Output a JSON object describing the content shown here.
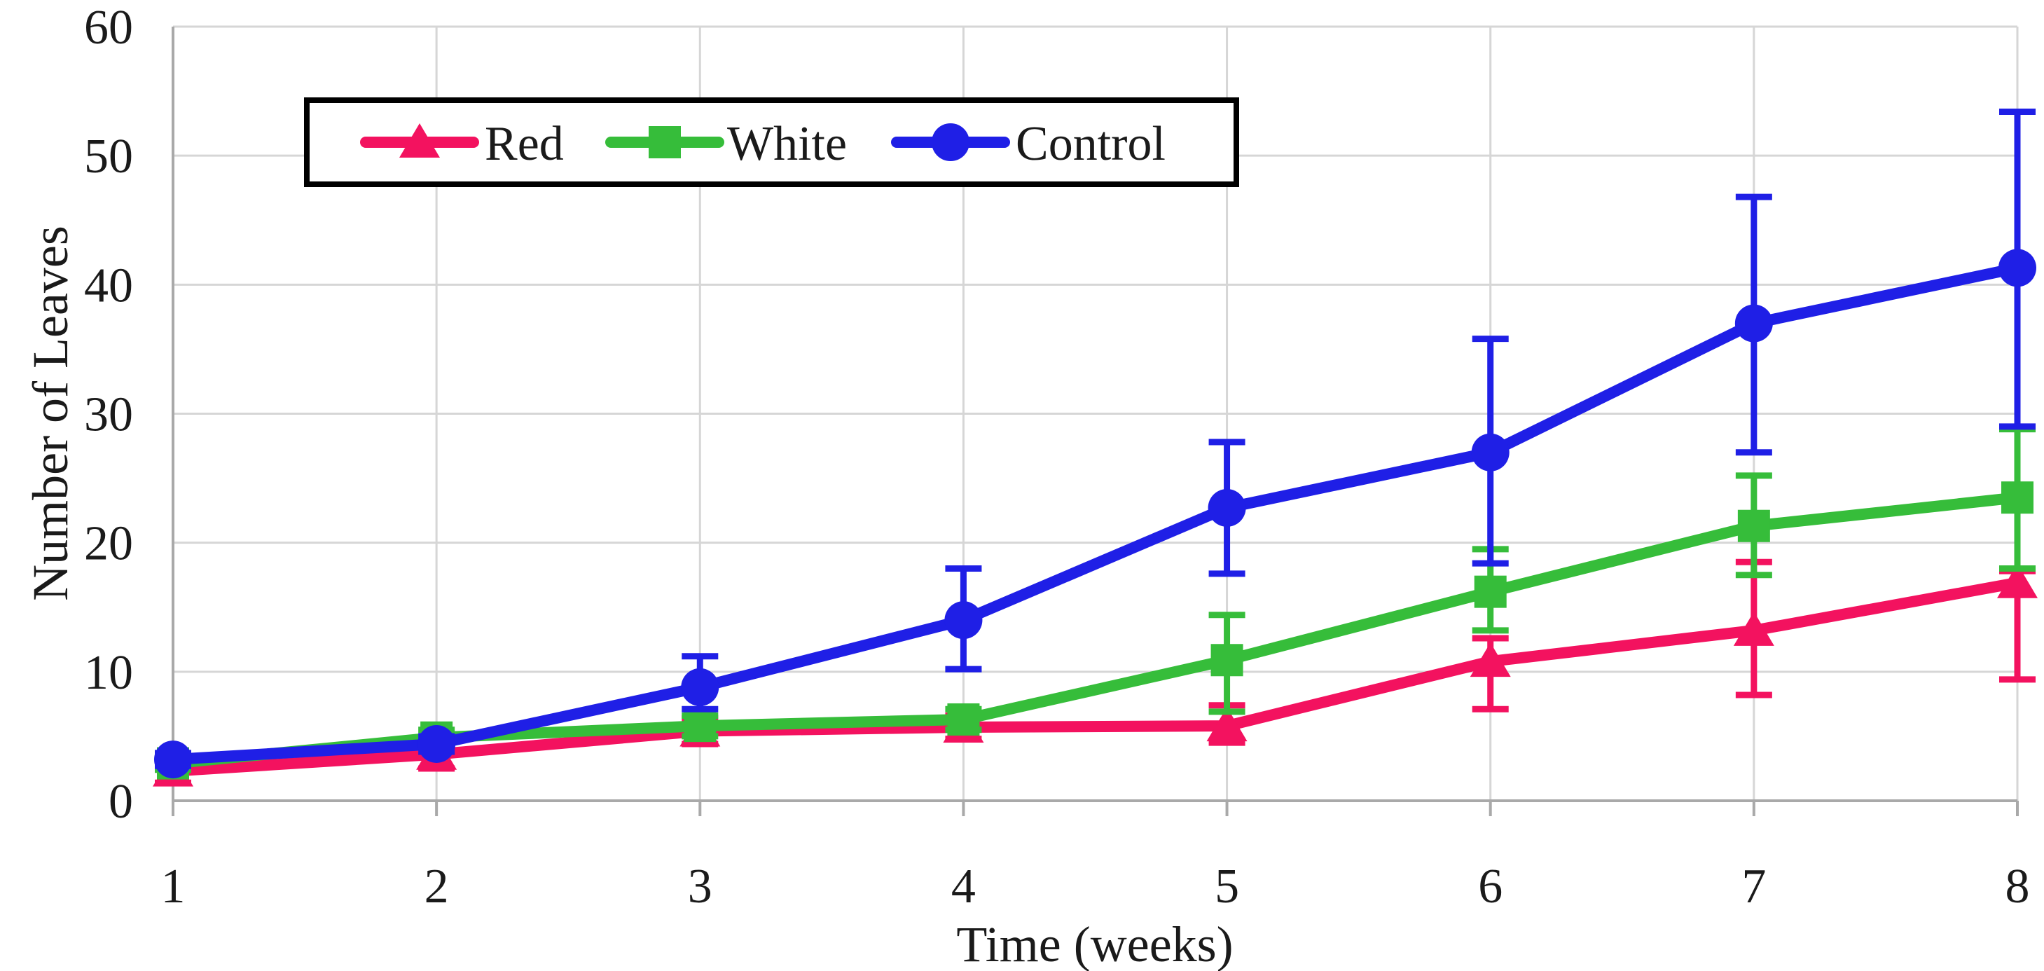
{
  "chart_data": {
    "type": "line",
    "title": "",
    "xlabel": "Time (weeks)",
    "ylabel": "Number of Leaves",
    "x": [
      1,
      2,
      3,
      4,
      5,
      6,
      7,
      8
    ],
    "ylim": [
      0,
      60
    ],
    "yticks": [
      0,
      10,
      20,
      30,
      40,
      50,
      60
    ],
    "grid": true,
    "error_bars": true,
    "legend_position": "top-left-inside",
    "series": [
      {
        "name": "Red",
        "marker": "triangle",
        "color": "#F3125F",
        "values": [
          2.3,
          3.6,
          5.4,
          5.7,
          5.8,
          10.8,
          13.2,
          16.9
        ],
        "error_upper": [
          3.2,
          4.7,
          6.4,
          6.6,
          7.4,
          12.6,
          18.5,
          17.8
        ],
        "error_lower": [
          1.4,
          2.5,
          4.4,
          4.8,
          4.5,
          7.1,
          8.2,
          9.4
        ]
      },
      {
        "name": "White",
        "marker": "square",
        "color": "#36BD3A",
        "values": [
          2.9,
          4.9,
          5.8,
          6.3,
          10.9,
          16.2,
          21.3,
          23.5
        ],
        "error_upper": [
          3.4,
          5.5,
          6.6,
          7.1,
          14.4,
          19.5,
          25.2,
          28.8
        ],
        "error_lower": [
          2.4,
          4.3,
          5.0,
          5.5,
          6.9,
          13.2,
          17.5,
          18.0
        ]
      },
      {
        "name": "Control",
        "marker": "circle",
        "color": "#1F1FE6",
        "values": [
          3.2,
          4.4,
          8.8,
          14.0,
          22.7,
          27.0,
          37.0,
          41.3
        ],
        "error_upper": [
          3.7,
          5.0,
          11.2,
          18.0,
          27.8,
          35.8,
          46.8,
          53.4
        ],
        "error_lower": [
          2.7,
          3.8,
          7.1,
          10.2,
          17.6,
          18.4,
          27.0,
          29.0
        ]
      }
    ]
  },
  "colors": {
    "background": "#FFFFFF",
    "gridline": "#D6D6D6",
    "axis": "#A9A9A9",
    "text": "#1A1A1A",
    "legend_border": "#000000",
    "legend_fill": "#FFFFFF"
  }
}
